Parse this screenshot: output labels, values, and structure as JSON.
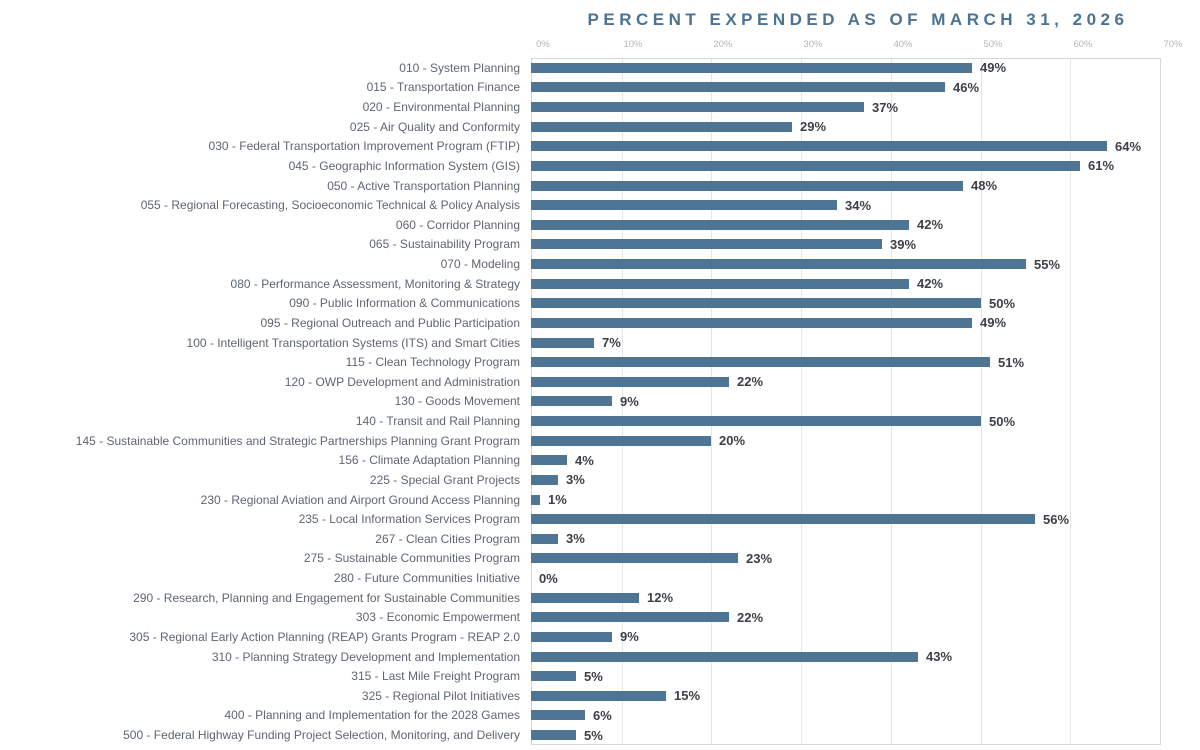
{
  "chart_data": {
    "type": "bar",
    "orientation": "horizontal",
    "title": "PERCENT EXPENDED AS OF MARCH 31, 2026",
    "xlabel": "",
    "ylabel": "",
    "xlim": [
      0,
      70
    ],
    "xticks": [
      "0%",
      "10%",
      "20%",
      "30%",
      "40%",
      "50%",
      "60%",
      "70%"
    ],
    "grid": "vertical",
    "value_suffix": "%",
    "categories": [
      "010 - System Planning",
      "015 - Transportation Finance",
      "020 - Environmental Planning",
      "025 - Air Quality and Conformity",
      "030 - Federal Transportation Improvement Program (FTIP)",
      "045 - Geographic Information System (GIS)",
      "050 - Active Transportation Planning",
      "055 - Regional Forecasting, Socioeconomic Technical & Policy Analysis",
      "060 - Corridor Planning",
      "065 - Sustainability Program",
      "070 - Modeling",
      "080 - Performance Assessment, Monitoring & Strategy",
      "090 - Public Information & Communications",
      "095 - Regional Outreach and Public Participation",
      "100 - Intelligent Transportation Systems (ITS) and Smart Cities",
      "115 - Clean Technology Program",
      "120 - OWP Development and Administration",
      "130 - Goods Movement",
      "140 - Transit and Rail Planning",
      "145 - Sustainable Communities and Strategic Partnerships Planning Grant Program",
      "156 - Climate Adaptation Planning",
      "225 - Special Grant Projects",
      "230 - Regional Aviation and Airport Ground Access Planning",
      "235 - Local Information Services Program",
      "267 - Clean Cities Program",
      "275 - Sustainable Communities Program",
      "280 - Future Communities Initiative",
      "290 - Research, Planning and Engagement for Sustainable Communities",
      "303 - Economic Empowerment",
      "305 - Regional Early Action Planning (REAP) Grants Program - REAP 2.0",
      "310 - Planning Strategy Development and Implementation",
      "315 - Last Mile Freight Program",
      "325 - Regional Pilot Initiatives",
      "400 - Planning and Implementation for the 2028 Games",
      "500 - Federal Highway Funding Project Selection, Monitoring, and Delivery"
    ],
    "values": [
      49,
      46,
      37,
      29,
      64,
      61,
      48,
      34,
      42,
      39,
      55,
      42,
      50,
      49,
      7,
      51,
      22,
      9,
      50,
      20,
      4,
      3,
      1,
      56,
      3,
      23,
      0,
      12,
      22,
      9,
      43,
      5,
      15,
      6,
      5
    ],
    "colors": {
      "bar": "#4e7694",
      "title": "#4a7394",
      "category_label": "#5f6670",
      "value_label": "#3d4045",
      "tick_label": "#b1b5b9",
      "gridline": "#e4e5e7",
      "plot_border": "#d5d7d9"
    }
  }
}
